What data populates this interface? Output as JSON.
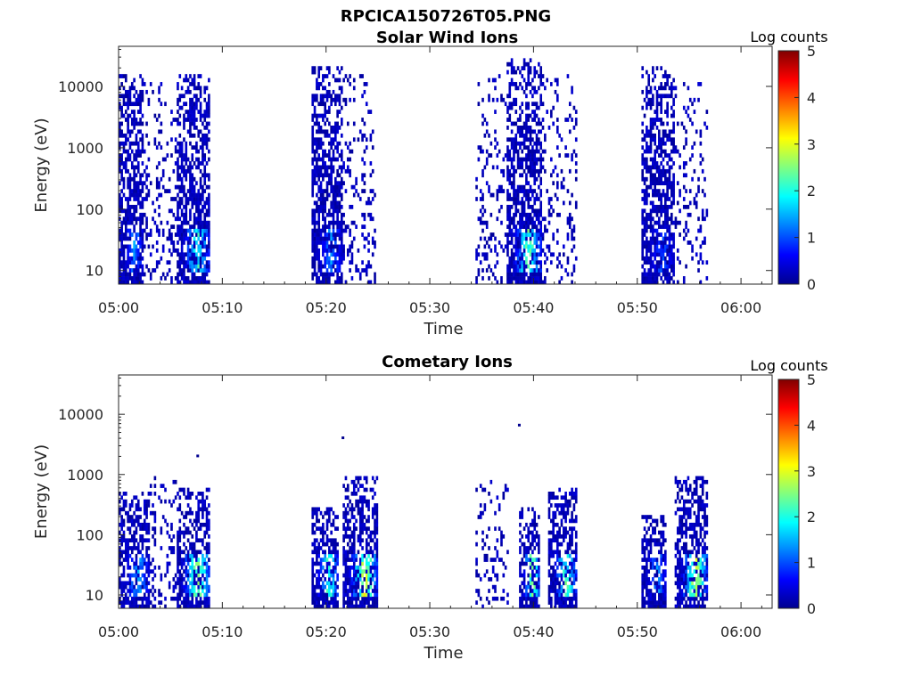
{
  "figure_title": "RPCICA150726T05.PNG",
  "colormap": [
    "#00008f",
    "#0000ff",
    "#0080ff",
    "#00ffff",
    "#80ff80",
    "#ffff00",
    "#ff8000",
    "#ff0000",
    "#800000"
  ],
  "chart_data": [
    {
      "type": "heatmap",
      "title": "Solar Wind Ions",
      "xlabel": "Time",
      "ylabel": "Energy (eV)",
      "xlim": [
        "05:00",
        "06:03"
      ],
      "x_ticks": [
        "05:00",
        "05:10",
        "05:20",
        "05:30",
        "05:40",
        "05:50",
        "06:00"
      ],
      "ylim": [
        6,
        45000
      ],
      "yscale": "log",
      "y_ticks": [
        "10",
        "100",
        "1000",
        "10000"
      ],
      "colorbar": {
        "label": "Log counts",
        "range": [
          0,
          5
        ],
        "ticks": [
          "0",
          "1",
          "2",
          "3",
          "4",
          "5"
        ]
      },
      "bursts": [
        {
          "start": "05:00",
          "end": "05:02.4",
          "emax": 15000,
          "peak": 1.6
        },
        {
          "start": "05:02.4",
          "end": "05:05.5",
          "emax": 12000,
          "peak": 0.4,
          "sparse": true
        },
        {
          "start": "05:05.6",
          "end": "05:08.8",
          "emax": 15000,
          "peak": 2.5
        },
        {
          "start": "05:18.6",
          "end": "05:21.6",
          "emax": 20000,
          "peak": 1.6
        },
        {
          "start": "05:21.6",
          "end": "05:24.8",
          "emax": 15000,
          "peak": 0.4,
          "sparse": true
        },
        {
          "start": "05:34.4",
          "end": "05:37.4",
          "emax": 15000,
          "peak": 0.4,
          "sparse": true
        },
        {
          "start": "05:37.4",
          "end": "05:40.8",
          "emax": 30000,
          "peak": 2.8
        },
        {
          "start": "05:40.8",
          "end": "05:44.2",
          "emax": 15000,
          "peak": 0.4,
          "sparse": true
        },
        {
          "start": "05:50.4",
          "end": "05:53.6",
          "emax": 20000,
          "peak": 1.2
        },
        {
          "start": "05:53.6",
          "end": "05:56.8",
          "emax": 12000,
          "peak": 0.4,
          "sparse": true
        }
      ]
    },
    {
      "type": "heatmap",
      "title": "Cometary Ions",
      "xlabel": "Time",
      "ylabel": "Energy (eV)",
      "xlim": [
        "05:00",
        "06:03"
      ],
      "x_ticks": [
        "05:00",
        "05:10",
        "05:20",
        "05:30",
        "05:40",
        "05:50",
        "06:00"
      ],
      "ylim": [
        6,
        45000
      ],
      "yscale": "log",
      "y_ticks": [
        "10",
        "100",
        "1000",
        "10000"
      ],
      "colorbar": {
        "label": "Log counts",
        "range": [
          0,
          5
        ],
        "ticks": [
          "0",
          "1",
          "2",
          "3",
          "4",
          "5"
        ]
      },
      "bursts": [
        {
          "start": "05:00",
          "end": "05:03",
          "emax": 500,
          "peak": 1.8
        },
        {
          "start": "05:03",
          "end": "05:05.5",
          "emax": 900,
          "peak": 0.4,
          "sparse": true
        },
        {
          "start": "05:05.6",
          "end": "05:08.8",
          "emax": 600,
          "peak": 3.2
        },
        {
          "start": "05:18.6",
          "end": "05:21.2",
          "emax": 300,
          "peak": 2.6
        },
        {
          "start": "05:21.6",
          "end": "05:25",
          "emax": 900,
          "peak": 3.4
        },
        {
          "start": "05:34.4",
          "end": "05:37.6",
          "emax": 800,
          "peak": 0.4,
          "sparse": true
        },
        {
          "start": "05:38.6",
          "end": "05:40.6",
          "emax": 300,
          "peak": 3.2
        },
        {
          "start": "05:41.4",
          "end": "05:44.2",
          "emax": 600,
          "peak": 2.7
        },
        {
          "start": "05:50.4",
          "end": "05:52.8",
          "emax": 200,
          "peak": 1.6
        },
        {
          "start": "05:53.6",
          "end": "05:56.8",
          "emax": 1000,
          "peak": 3.4
        }
      ],
      "isolated_points": [
        {
          "time": "05:07.5",
          "energy": 2000
        },
        {
          "time": "05:21.5",
          "energy": 4000
        },
        {
          "time": "05:38.5",
          "energy": 6500
        }
      ]
    }
  ]
}
